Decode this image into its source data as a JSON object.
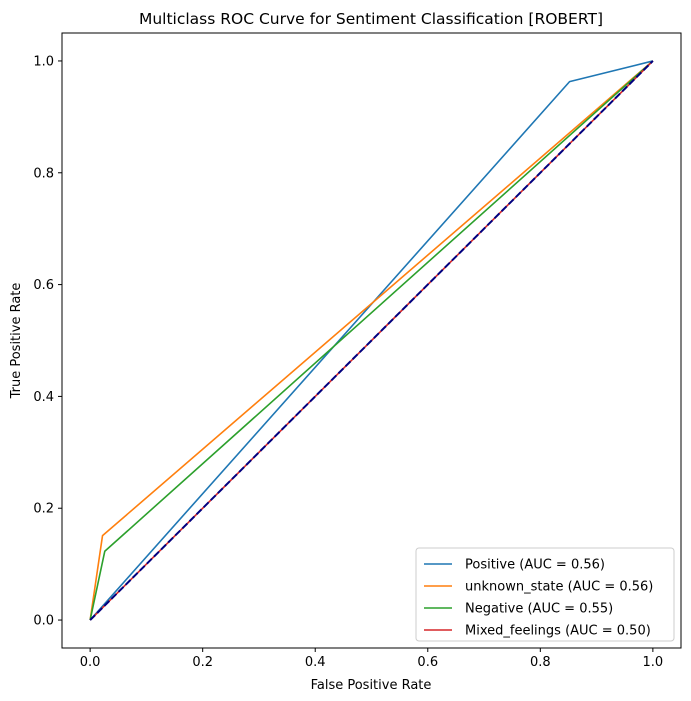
{
  "chart_data": {
    "type": "line",
    "title": "Multiclass ROC Curve for Sentiment Classification [ROBERT]",
    "xlabel": "False Positive Rate",
    "ylabel": "True Positive Rate",
    "xlim": [
      -0.05,
      1.05
    ],
    "ylim": [
      -0.05,
      1.05
    ],
    "xticks": [
      "0.0",
      "0.2",
      "0.4",
      "0.6",
      "0.8",
      "1.0"
    ],
    "yticks": [
      "0.0",
      "0.2",
      "0.4",
      "0.6",
      "0.8",
      "1.0"
    ],
    "grid": false,
    "legend_position": "lower-right",
    "series": [
      {
        "name": "Positive (AUC = 0.56)",
        "color": "#1f77b4",
        "x": [
          0.0,
          0.852,
          1.0
        ],
        "y": [
          0.0,
          0.963,
          1.0
        ]
      },
      {
        "name": "unknown_state (AUC = 0.56)",
        "color": "#ff7f0e",
        "x": [
          0.0,
          0.022,
          1.0
        ],
        "y": [
          0.0,
          0.151,
          1.0
        ]
      },
      {
        "name": "Negative (AUC = 0.55)",
        "color": "#2ca02c",
        "x": [
          0.0,
          0.026,
          1.0
        ],
        "y": [
          0.0,
          0.123,
          1.0
        ]
      },
      {
        "name": "Mixed_feelings (AUC = 0.50)",
        "color": "#d62728",
        "x": [
          0.0,
          1.0
        ],
        "y": [
          0.0,
          1.0
        ]
      }
    ],
    "reference_line": {
      "color": "#000080",
      "style": "dashed",
      "x": [
        0.0,
        1.0
      ],
      "y": [
        0.0,
        1.0
      ]
    }
  }
}
